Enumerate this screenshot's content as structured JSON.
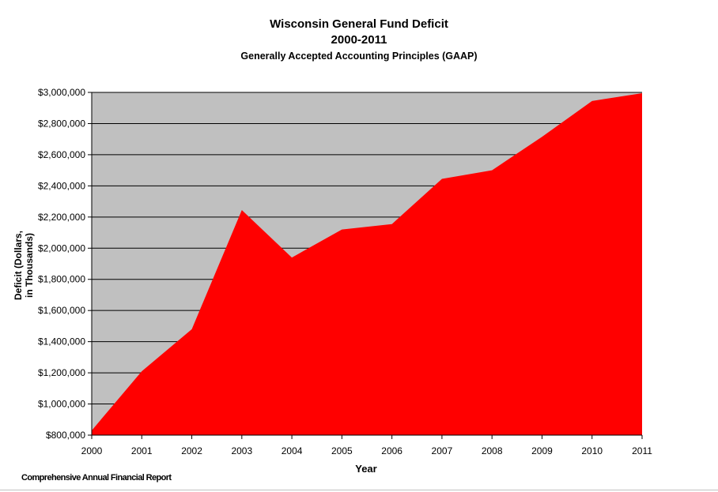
{
  "chart_data": {
    "type": "area",
    "title": "Wisconsin General Fund Deficit",
    "subtitle": "2000-2011",
    "subtitle2": "Generally Accepted Accounting Principles (GAAP)",
    "xlabel": "Year",
    "ylabel_line1": "Deficit (Dollars,",
    "ylabel_line2": "in Thousands)",
    "categories": [
      "2000",
      "2001",
      "2002",
      "2003",
      "2004",
      "2005",
      "2006",
      "2007",
      "2008",
      "2009",
      "2010",
      "2011"
    ],
    "values": [
      830000,
      1210000,
      1480000,
      2245000,
      1940000,
      2120000,
      2155000,
      2445000,
      2500000,
      2715000,
      2945000,
      2995000
    ],
    "ylim": [
      800000,
      3000000
    ],
    "yticks": [
      800000,
      1000000,
      1200000,
      1400000,
      1600000,
      1800000,
      2000000,
      2200000,
      2400000,
      2600000,
      2800000,
      3000000
    ],
    "ytick_labels": [
      "$800,000",
      "$1,000,000",
      "$1,200,000",
      "$1,400,000",
      "$1,600,000",
      "$1,800,000",
      "$2,000,000",
      "$2,200,000",
      "$2,400,000",
      "$2,600,000",
      "$2,800,000",
      "$3,000,000"
    ],
    "grid": true,
    "legend": "none",
    "fill_color": "#ff0000",
    "plot_background": "#c0c0c0"
  },
  "footer": "Comprehensive Annual Financial Report"
}
